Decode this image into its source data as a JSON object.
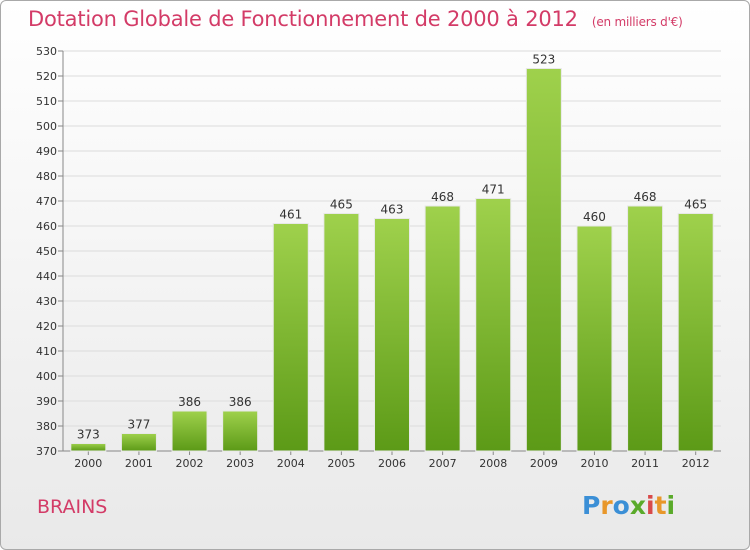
{
  "title": "Dotation Globale de Fonctionnement de 2000 à 2012",
  "subtitle": "(en milliers d'€)",
  "commune": "BRAINS",
  "logo": {
    "letters": [
      "P",
      "r",
      "o",
      "x",
      "i",
      "t",
      "i"
    ],
    "colors": [
      "#3b8fd6",
      "#e8972a",
      "#3b8fd6",
      "#5aaa2a",
      "#d84a4a",
      "#e8972a",
      "#5aaa2a"
    ]
  },
  "colors": {
    "title": "#d33b67",
    "bar_top": "#9fd14c",
    "bar_bottom": "#5c9a17",
    "grid": "#dcdcdc"
  },
  "chart_data": {
    "type": "bar",
    "categories": [
      "2000",
      "2001",
      "2002",
      "2003",
      "2004",
      "2005",
      "2006",
      "2007",
      "2008",
      "2009",
      "2010",
      "2011",
      "2012"
    ],
    "values": [
      373,
      377,
      386,
      386,
      461,
      465,
      463,
      468,
      471,
      523,
      460,
      468,
      465
    ],
    "value_labels": [
      "373",
      "377",
      "386",
      "386",
      "461",
      "465",
      "463",
      "468",
      "471",
      "523",
      "460",
      "468",
      "465"
    ],
    "ylim": [
      370,
      530
    ],
    "yticks": [
      370,
      380,
      390,
      400,
      410,
      420,
      430,
      440,
      450,
      460,
      470,
      480,
      490,
      500,
      510,
      520,
      530
    ],
    "grid": true,
    "xlabel": "",
    "ylabel": ""
  }
}
